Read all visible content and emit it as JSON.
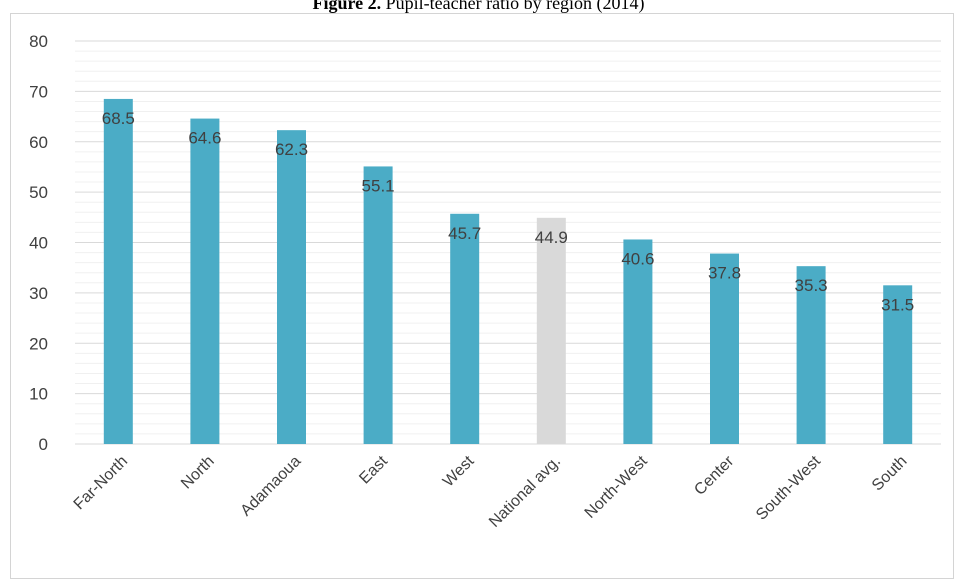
{
  "figure_title": {
    "prefix": "Figure 2.",
    "text": " Pupil-teacher ratio by region (2014)"
  },
  "colors": {
    "bar": "#4bacc6",
    "highlight_bar": "#d9d9d9",
    "major_grid": "#d9d9d9",
    "minor_grid": "#f0f0f0",
    "text": "#404040"
  },
  "chart_data": {
    "type": "bar",
    "title": "Figure 2. Pupil-teacher ratio by region (2014)",
    "categories": [
      "Far-North",
      "North",
      "Adamaoua",
      "East",
      "West",
      "National avg.",
      "North-West",
      "Center",
      "South-West",
      "South"
    ],
    "values": [
      68.5,
      64.6,
      62.3,
      55.1,
      45.7,
      44.9,
      40.6,
      37.8,
      35.3,
      31.5
    ],
    "labels": [
      "68.5",
      "64.6",
      "62.3",
      "55.1",
      "45.7",
      "44.9",
      "40.6",
      "37.8",
      "35.3",
      "31.5"
    ],
    "highlight_category": "National avg.",
    "ylim": [
      0,
      80
    ],
    "yticks": [
      0,
      10,
      20,
      30,
      40,
      50,
      60,
      70,
      80
    ],
    "xlabel": "",
    "ylabel": "",
    "grid": true,
    "minor_grid": true,
    "legend": "none"
  }
}
